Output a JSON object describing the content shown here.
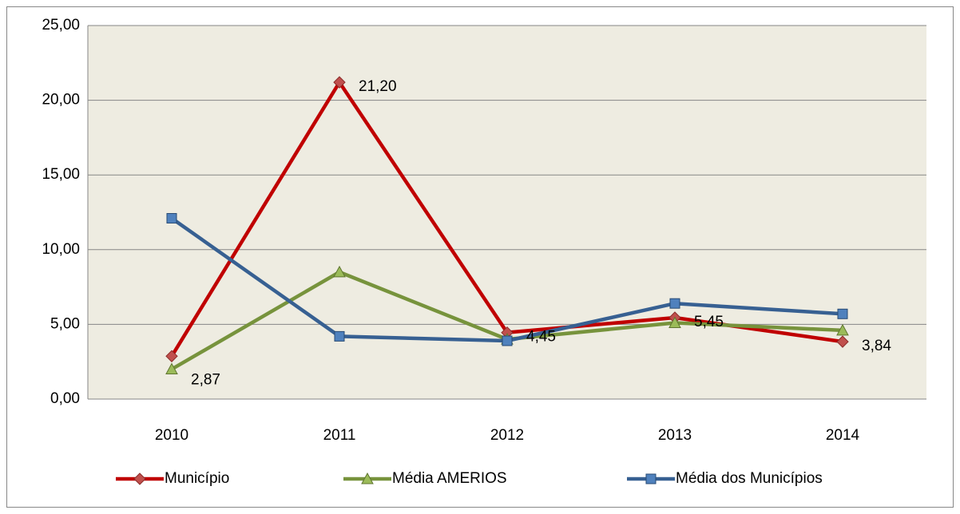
{
  "chart_data": {
    "type": "line",
    "categories": [
      "2010",
      "2011",
      "2012",
      "2013",
      "2014"
    ],
    "series": [
      {
        "name": "Município",
        "color": "#c00000",
        "marker_color": "#c0504d",
        "marker": "diamond",
        "values": [
          2.87,
          21.2,
          4.45,
          5.45,
          3.84
        ],
        "value_labels": [
          "2,87",
          "21,20",
          "4,45",
          "5,45",
          "3,84"
        ]
      },
      {
        "name": "Média AMERIOS",
        "color": "#77933c",
        "marker_color": "#9bbb59",
        "marker": "triangle",
        "values": [
          2.0,
          8.5,
          4.0,
          5.1,
          4.6
        ]
      },
      {
        "name": "Média dos Municípios",
        "color": "#376092",
        "marker_color": "#4f81bd",
        "marker": "square",
        "values": [
          12.1,
          4.2,
          3.9,
          6.4,
          5.7
        ]
      }
    ],
    "ylim": [
      0,
      25
    ],
    "yticks": [
      {
        "value": 0,
        "label": "0,00"
      },
      {
        "value": 5,
        "label": "5,00"
      },
      {
        "value": 10,
        "label": "10,00"
      },
      {
        "value": 15,
        "label": "15,00"
      },
      {
        "value": 20,
        "label": "20,00"
      },
      {
        "value": 25,
        "label": "25,00"
      }
    ],
    "grid": true,
    "legend": "bottom"
  }
}
